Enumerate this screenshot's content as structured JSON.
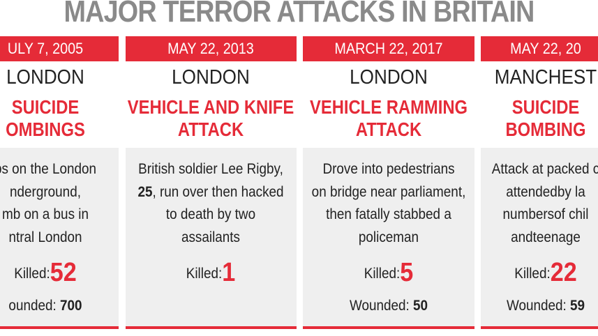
{
  "title": "MAJOR TERROR ATTACKS IN BRITAIN",
  "columns": [
    {
      "date": "ULY 7, 2005",
      "city": "LONDON",
      "attack": [
        "SUICIDE",
        "OMBINGS"
      ],
      "description": [
        {
          "text": "bs on the London"
        },
        {
          "text": "nderground,"
        },
        {
          "text": "mb on a bus in"
        },
        {
          "text": "ntral London"
        }
      ],
      "killed_label": "Killed:",
      "killed": 52,
      "wounded_label": "ounded:",
      "wounded": 700
    },
    {
      "date": "MAY 22, 2013",
      "city": "LONDON",
      "attack": [
        "VEHICLE AND KNIFE",
        "ATTACK"
      ],
      "description": [
        {
          "text": "British soldier Lee Rigby,"
        },
        {
          "bold": "25",
          "text": ", run over then hacked"
        },
        {
          "text": "to death by two"
        },
        {
          "text": "assailants"
        }
      ],
      "killed_label": "Killed:",
      "killed": 1
    },
    {
      "date": "MARCH 22, 2017",
      "city": "LONDON",
      "attack": [
        "VEHICLE RAMMING",
        "ATTACK"
      ],
      "description": [
        {
          "text": "Drove into pedestrians"
        },
        {
          "text": "on bridge near parliament,"
        },
        {
          "text": "then fatally stabbed a"
        },
        {
          "text": "policeman"
        }
      ],
      "killed_label": "Killed:",
      "killed": 5,
      "wounded_label": "Wounded:",
      "wounded": 50
    },
    {
      "date": "MAY 22, 20",
      "city": "MANCHEST",
      "attack": [
        "SUICIDE",
        "BOMBING"
      ],
      "description": [
        {
          "text": "Attack at packed c"
        },
        {
          "text": "attendedby la"
        },
        {
          "text": "numbersof chil"
        },
        {
          "text": "andteenage"
        }
      ],
      "killed_label": "Killed:",
      "killed": 22,
      "wounded_label": "Wounded:",
      "wounded": 59
    }
  ]
}
